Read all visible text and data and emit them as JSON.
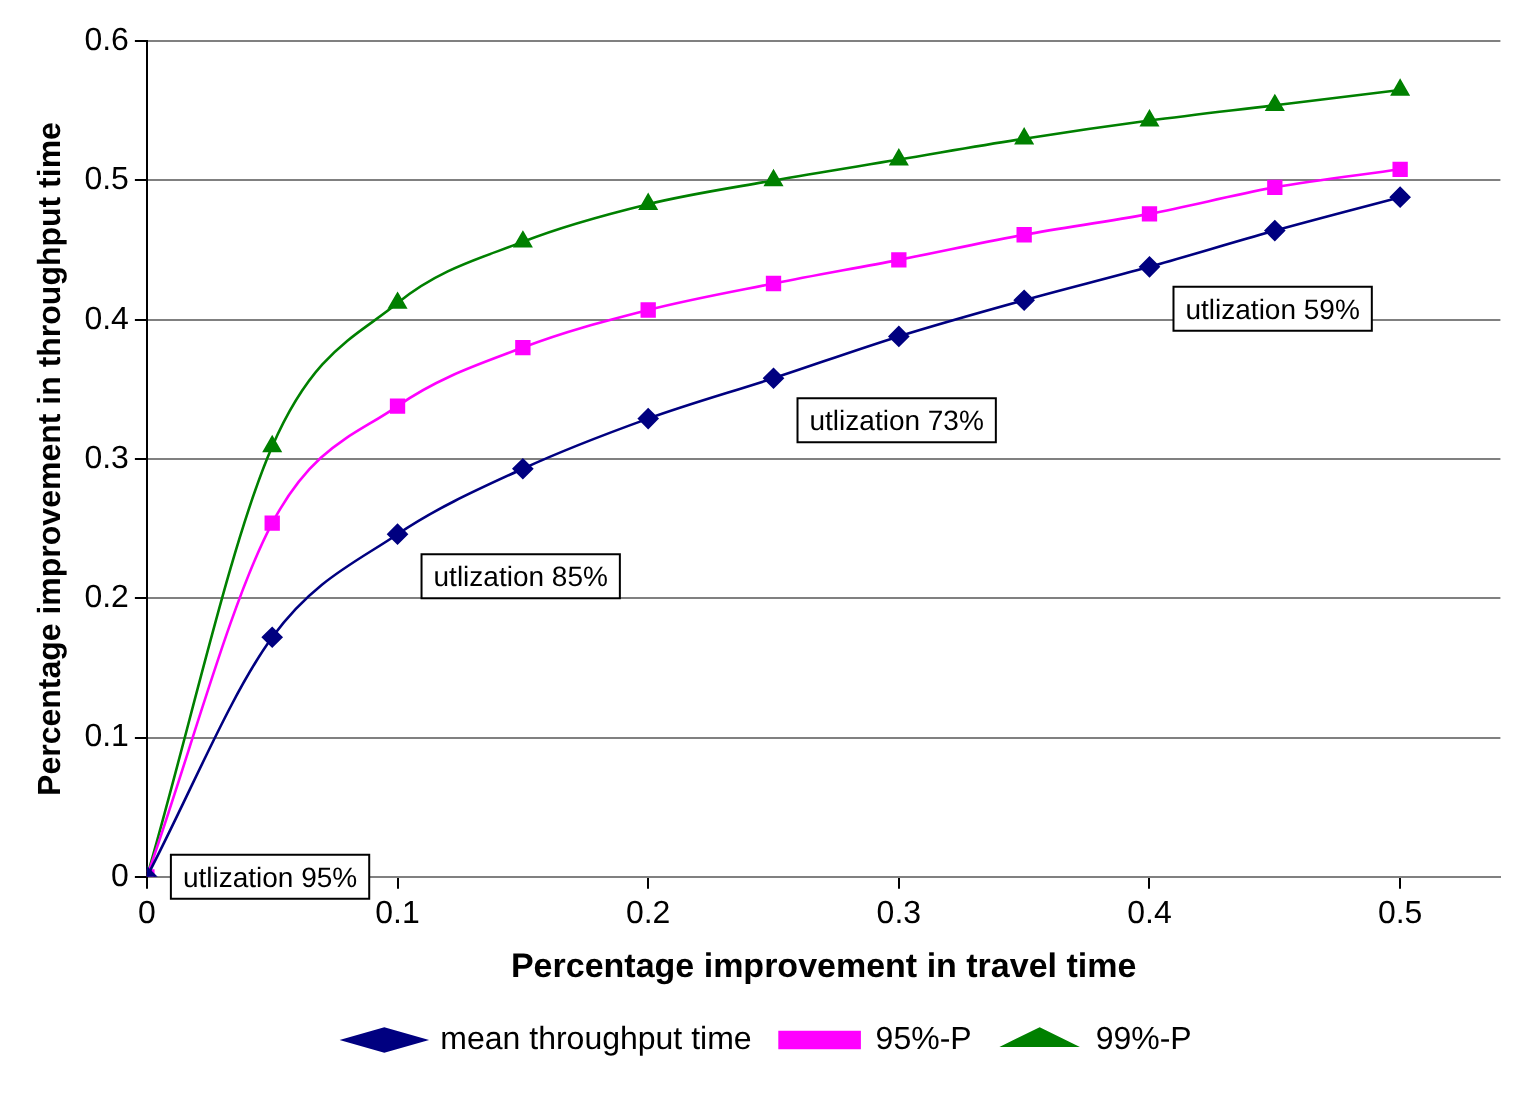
{
  "chart_data": {
    "type": "line",
    "xlabel": "Percentage improvement in travel time",
    "ylabel": "Percentage improvement in throughput time",
    "x": [
      0,
      0.05,
      0.1,
      0.15,
      0.2,
      0.25,
      0.3,
      0.35,
      0.4,
      0.45,
      0.5
    ],
    "series": [
      {
        "name": "mean throughput time",
        "color": "#000080",
        "marker": "diamond",
        "values": [
          0,
          0.172,
          0.246,
          0.293,
          0.329,
          0.358,
          0.388,
          0.414,
          0.438,
          0.464,
          0.488
        ]
      },
      {
        "name": "95%-P",
        "color": "#ff00ff",
        "marker": "square",
        "values": [
          0,
          0.254,
          0.338,
          0.38,
          0.407,
          0.426,
          0.443,
          0.461,
          0.476,
          0.495,
          0.508
        ]
      },
      {
        "name": "99%-P",
        "color": "#008000",
        "marker": "triangle",
        "values": [
          0,
          0.309,
          0.412,
          0.456,
          0.483,
          0.5,
          0.515,
          0.53,
          0.543,
          0.554,
          0.565
        ]
      }
    ],
    "xlim": [
      0,
      0.54
    ],
    "xticks": [
      0,
      0.1,
      0.2,
      0.3,
      0.4,
      0.5
    ],
    "ylim": [
      0,
      0.6
    ],
    "yticks": [
      0,
      0.1,
      0.2,
      0.3,
      0.4,
      0.5,
      0.6
    ],
    "grid": "y",
    "legend": "bottom",
    "annotations": [
      {
        "text": "utlization 95%",
        "x": 0,
        "y": 0
      },
      {
        "text": "utlization 85%",
        "x": 0.1,
        "y": 0.246
      },
      {
        "text": "utlization 73%",
        "x": 0.25,
        "y": 0.358
      },
      {
        "text": "utlization 59%",
        "x": 0.4,
        "y": 0.438
      }
    ]
  }
}
